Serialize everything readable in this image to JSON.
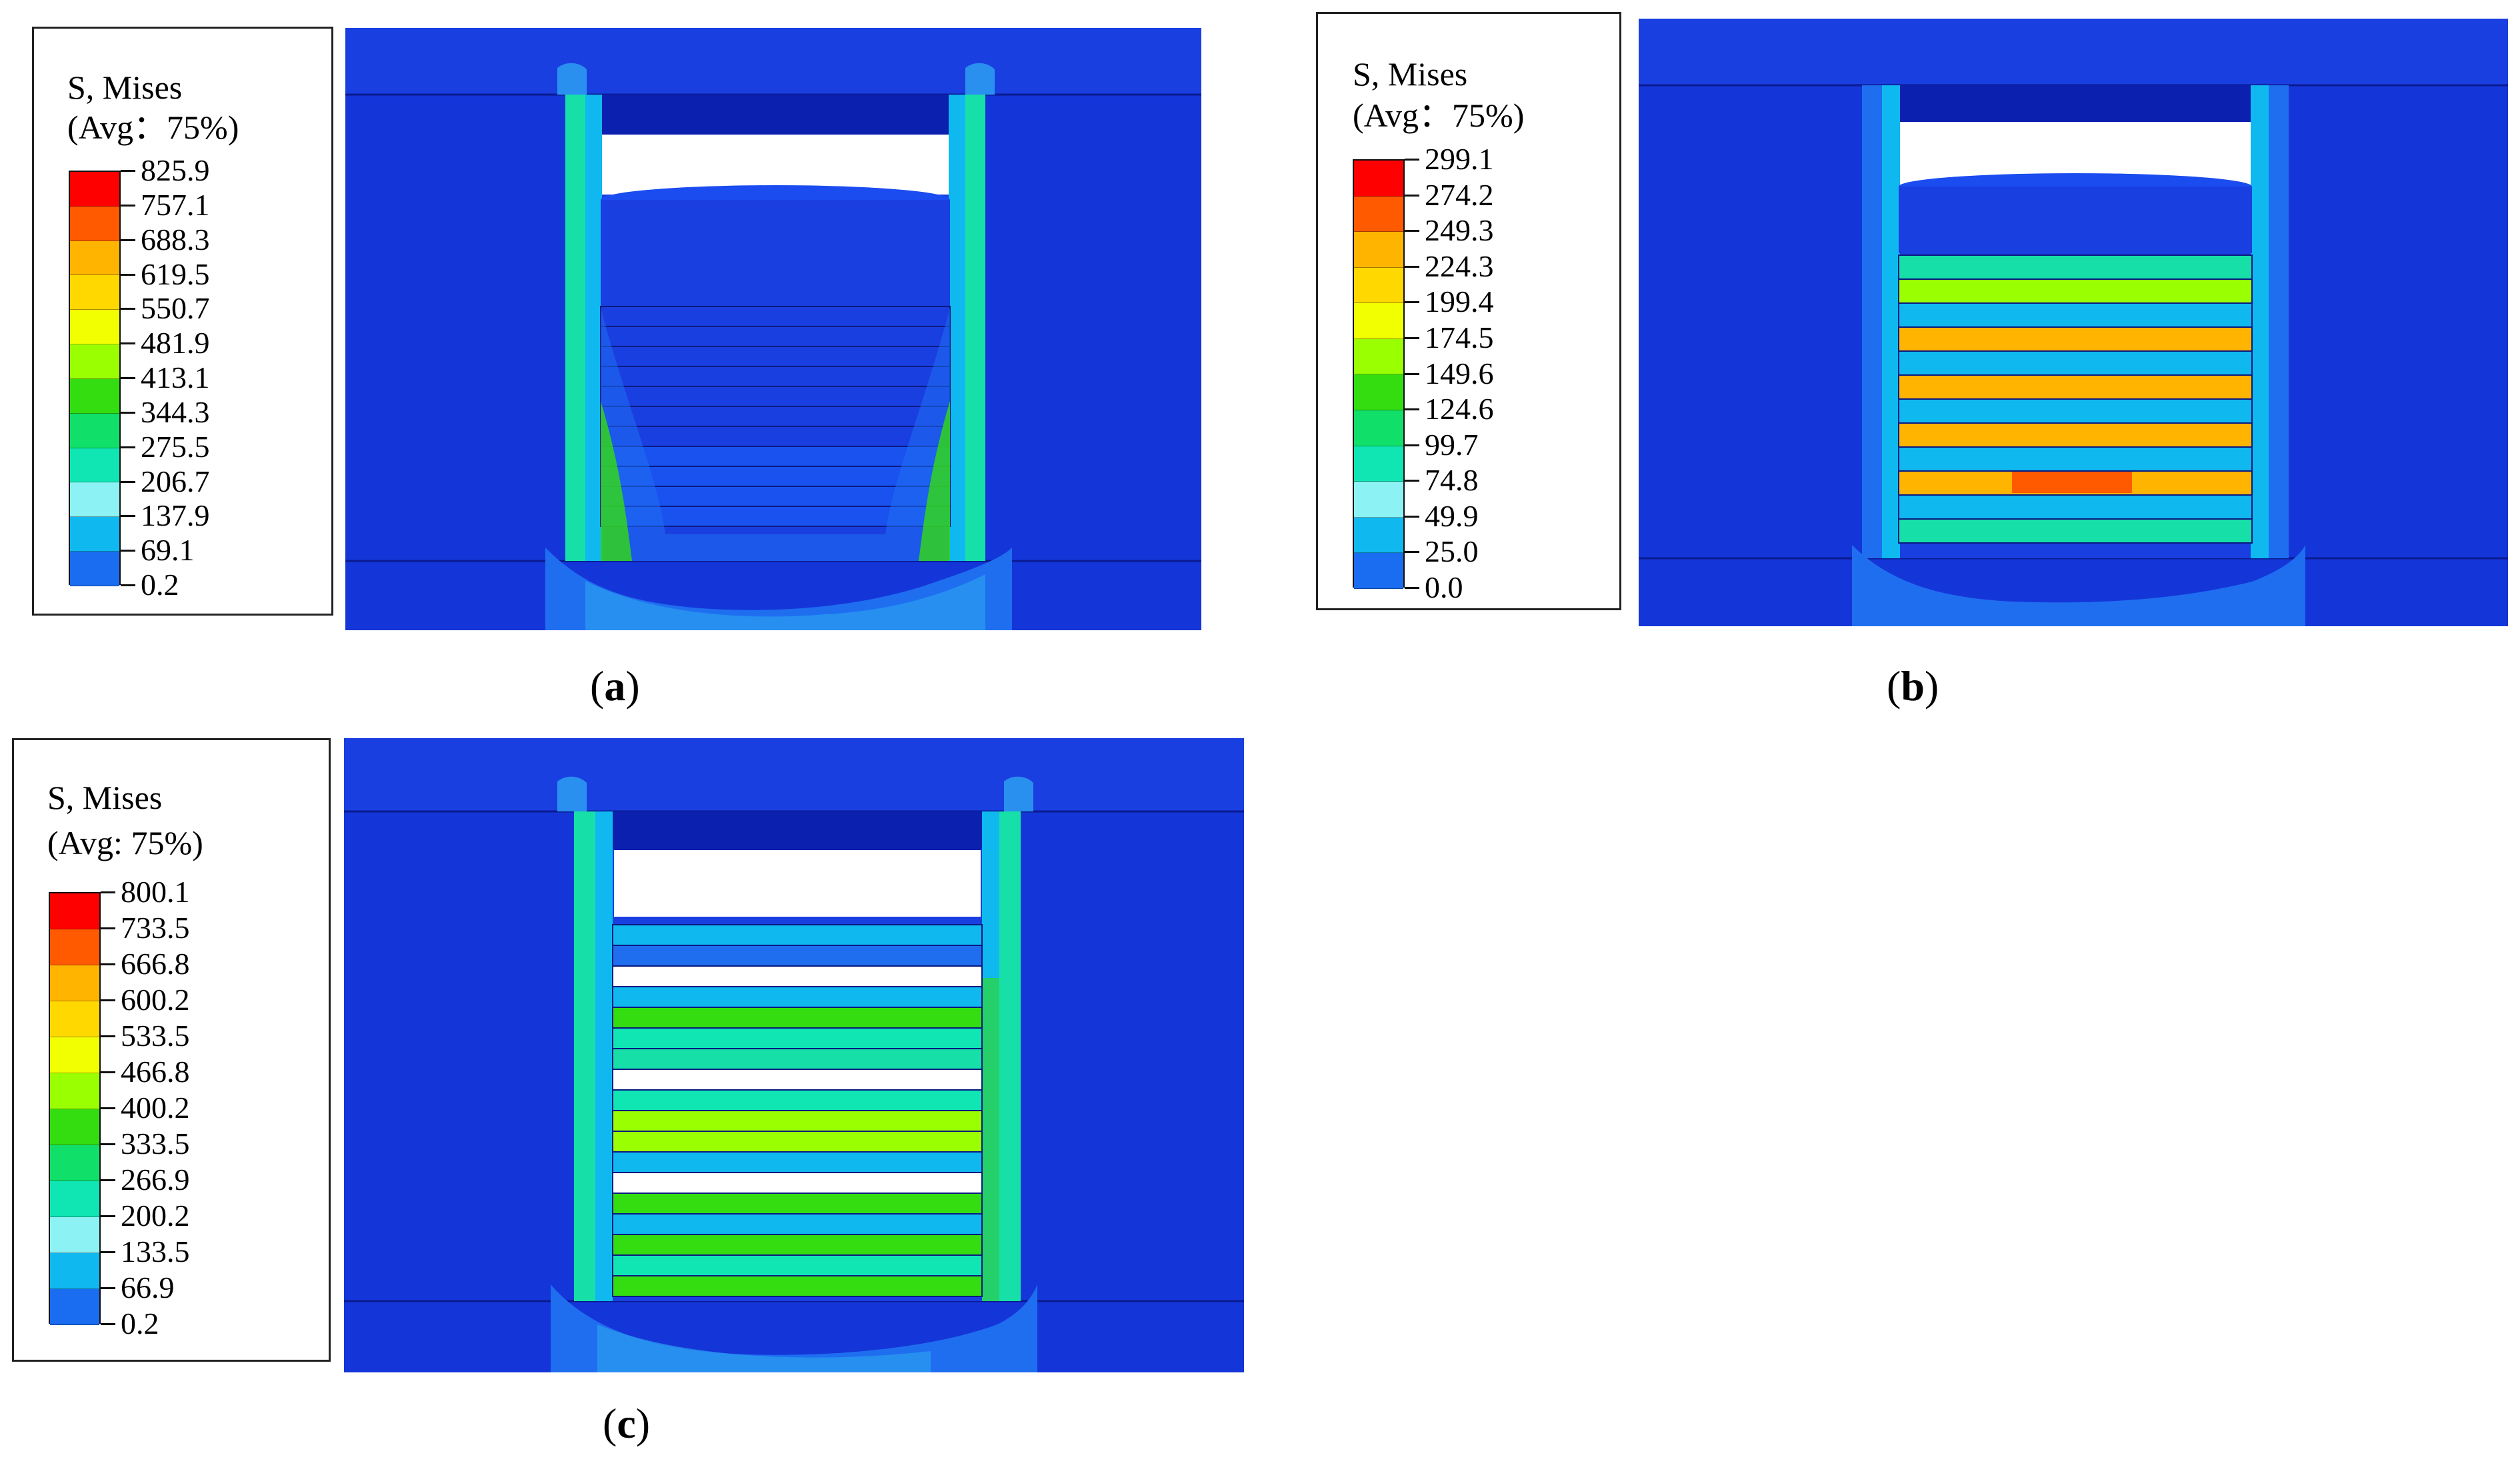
{
  "panels": [
    {
      "id": "a",
      "caption_label": "a",
      "legend": {
        "title_line1": "S, Mises",
        "title_line2": "(Avg：75%)",
        "values": [
          "825.9",
          "757.1",
          "688.3",
          "619.5",
          "550.7",
          "481.9",
          "413.1",
          "344.3",
          "275.5",
          "206.7",
          "137.9",
          "69.1",
          "0.2"
        ]
      }
    },
    {
      "id": "b",
      "caption_label": "b",
      "legend": {
        "title_line1": "S, Mises",
        "title_line2": "(Avg：75%)",
        "values": [
          "299.1",
          "274.2",
          "249.3",
          "224.3",
          "199.4",
          "174.5",
          "149.6",
          "124.6",
          "99.7",
          "74.8",
          "49.9",
          "25.0",
          "0.0"
        ]
      }
    },
    {
      "id": "c",
      "caption_label": "c",
      "legend": {
        "title_line1": "S, Mises",
        "title_line2": "(Avg: 75%)",
        "values": [
          "800.1",
          "733.5",
          "666.8",
          "600.2",
          "533.5",
          "466.8",
          "400.2",
          "333.5",
          "266.9",
          "200.2",
          "133.5",
          "66.9",
          "0.2"
        ]
      }
    }
  ],
  "colormap": [
    "#ff0000",
    "#ff5a00",
    "#ffb400",
    "#ffd800",
    "#f2ff00",
    "#9aff00",
    "#33dd10",
    "#10e06a",
    "#10e6b4",
    "#8cf2f4",
    "#10b8f0",
    "#1a6cf0",
    "#0a1ee8"
  ],
  "colors": {
    "background_blue": "#1a3fd8",
    "frame_blue": "#0b2fd0",
    "shadow_blue": "#0a22b8"
  }
}
